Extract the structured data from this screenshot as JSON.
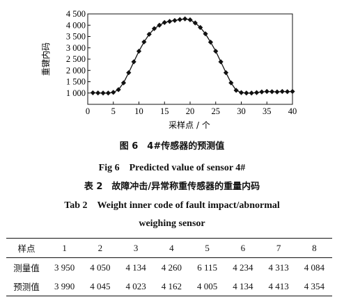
{
  "chart_data": {
    "type": "line",
    "title": "",
    "xlabel": "采样点 / 个",
    "ylabel": "重键内码",
    "xlim": [
      0,
      40
    ],
    "ylim": [
      500,
      4500
    ],
    "xticks": [
      "0",
      "5",
      "10",
      "15",
      "20",
      "25",
      "30",
      "35",
      "40"
    ],
    "yticks": [
      "1 000",
      "1 500",
      "2 000",
      "2 500",
      "3 000",
      "3 500",
      "4 000",
      "4 500"
    ],
    "grid": false,
    "legend": "none",
    "marker": "diamond",
    "color": "#111111",
    "x": [
      1,
      2,
      3,
      4,
      5,
      6,
      7,
      8,
      9,
      10,
      11,
      12,
      13,
      14,
      15,
      16,
      17,
      18,
      19,
      20,
      21,
      22,
      23,
      24,
      25,
      26,
      27,
      28,
      29,
      30,
      31,
      32,
      33,
      34,
      35,
      36,
      37,
      38,
      39,
      40
    ],
    "y": [
      1010,
      1005,
      1000,
      1000,
      1030,
      1150,
      1450,
      1900,
      2380,
      2850,
      3260,
      3600,
      3850,
      4000,
      4120,
      4170,
      4210,
      4250,
      4280,
      4240,
      4100,
      3900,
      3620,
      3250,
      2850,
      2380,
      1900,
      1450,
      1120,
      1020,
      1000,
      1000,
      1020,
      1050,
      1070,
      1060,
      1050,
      1070,
      1060,
      1070
    ]
  },
  "figure_caption_zh": "图 6　4#传感器的预测值",
  "figure_caption_en": "Fig 6　Predicted value of sensor 4#",
  "table_caption_zh": "表 2　故障冲击/异常称重传感器的重量内码",
  "table_caption_en_line1": "Tab 2　Weight inner code of fault impact/abnormal",
  "table_caption_en_line2": "weighing sensor",
  "table": {
    "headers": [
      "样点",
      "1",
      "2",
      "3",
      "4",
      "5",
      "6",
      "7",
      "8"
    ],
    "rows": [
      [
        "测量值",
        "3 950",
        "4 050",
        "4 134",
        "4 260",
        "6 115",
        "4 234",
        "4 313",
        "4 084"
      ],
      [
        "预测值",
        "3 990",
        "4 045",
        "4 023",
        "4 162",
        "4 005",
        "4 134",
        "4 413",
        "4 354"
      ]
    ]
  }
}
